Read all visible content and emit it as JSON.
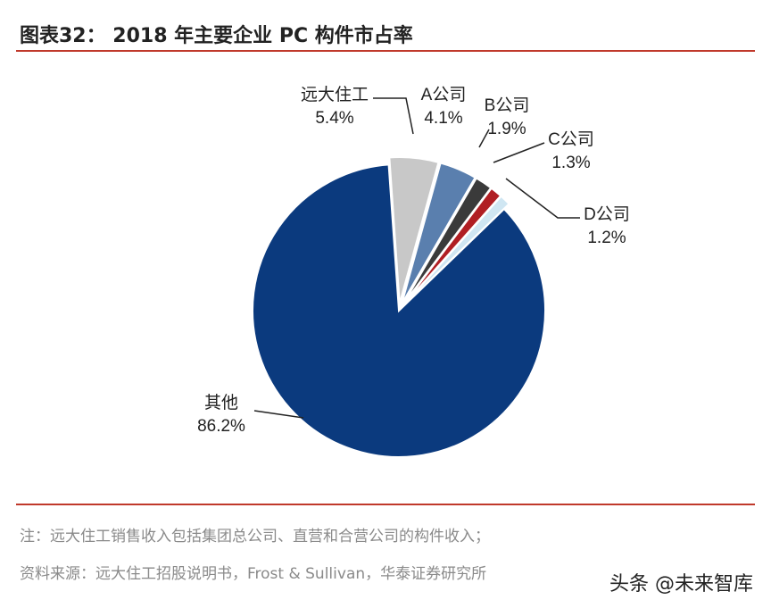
{
  "title": "图表32：  2018 年主要企业 PC 构件市占率",
  "chart_data": {
    "type": "pie",
    "title": "2018 年主要企业 PC 构件市占率",
    "slices": [
      {
        "label": "远大住工",
        "value": 5.4,
        "display": "5.4%",
        "color": "#c8c8c8"
      },
      {
        "label": "A公司",
        "value": 4.1,
        "display": "4.1%",
        "color": "#5a7fae"
      },
      {
        "label": "B公司",
        "value": 1.9,
        "display": "1.9%",
        "color": "#3a3a3a"
      },
      {
        "label": "C公司",
        "value": 1.3,
        "display": "1.3%",
        "color": "#b01e23"
      },
      {
        "label": "D公司",
        "value": 1.2,
        "display": "1.2%",
        "color": "#cfe6f2"
      },
      {
        "label": "其他",
        "value": 86.2,
        "display": "86.2%",
        "color": "#0b3a7e"
      }
    ]
  },
  "note": "注：远大住工销售收入包括集团总公司、直营和合营公司的构件收入；",
  "source": "资料来源：远大住工招股说明书，Frost & Sullivan，华泰证券研究所",
  "watermark": "头条 @未来智库"
}
